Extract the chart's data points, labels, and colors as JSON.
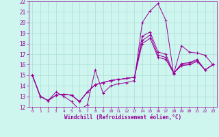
{
  "xlabel": "Windchill (Refroidissement éolien,°C)",
  "background_color": "#cef5ee",
  "grid_color": "#aaded8",
  "line_color": "#990099",
  "xlim": [
    -0.5,
    23.5
  ],
  "ylim": [
    12,
    22
  ],
  "yticks": [
    12,
    13,
    14,
    15,
    16,
    17,
    18,
    19,
    20,
    21,
    22
  ],
  "xticks": [
    0,
    1,
    2,
    3,
    4,
    5,
    6,
    7,
    8,
    9,
    10,
    11,
    12,
    13,
    14,
    15,
    16,
    17,
    18,
    19,
    20,
    21,
    22,
    23
  ],
  "line1_x": [
    0,
    1,
    2,
    3,
    4,
    5,
    6,
    7,
    8,
    9,
    10,
    11,
    12,
    13,
    14,
    15,
    16,
    17,
    18,
    19,
    20,
    21,
    22,
    23
  ],
  "line1_y": [
    15,
    13,
    12.6,
    13.4,
    13.0,
    12.5,
    11.7,
    12.2,
    15.5,
    13.3,
    14.0,
    14.2,
    14.3,
    14.5,
    20.0,
    21.1,
    21.8,
    20.2,
    15.1,
    17.8,
    17.2,
    17.1,
    16.9,
    16.0
  ],
  "line2_x": [
    0,
    1,
    2,
    3,
    4,
    5,
    6,
    7,
    8,
    9,
    10,
    11,
    12,
    13,
    14,
    15,
    16,
    17,
    18,
    19,
    20,
    21,
    22,
    23
  ],
  "line2_y": [
    15,
    13,
    12.6,
    13.1,
    13.2,
    13.1,
    12.5,
    13.4,
    14.1,
    14.3,
    14.5,
    14.6,
    14.7,
    14.8,
    18.7,
    19.1,
    17.2,
    17.0,
    15.2,
    16.1,
    16.2,
    16.5,
    15.5,
    16.0
  ],
  "line3_x": [
    0,
    1,
    2,
    3,
    4,
    5,
    6,
    7,
    8,
    9,
    10,
    11,
    12,
    13,
    14,
    15,
    16,
    17,
    18,
    19,
    20,
    21,
    22,
    23
  ],
  "line3_y": [
    15,
    13,
    12.6,
    13.1,
    13.2,
    13.1,
    12.5,
    13.4,
    14.1,
    14.3,
    14.5,
    14.6,
    14.7,
    14.8,
    18.3,
    18.8,
    16.9,
    16.7,
    15.2,
    16.0,
    16.1,
    16.4,
    15.5,
    16.0
  ],
  "line4_x": [
    0,
    1,
    2,
    3,
    4,
    5,
    6,
    7,
    8,
    9,
    10,
    11,
    12,
    13,
    14,
    15,
    16,
    17,
    18,
    19,
    20,
    21,
    22,
    23
  ],
  "line4_y": [
    15,
    13,
    12.6,
    13.1,
    13.2,
    13.1,
    12.5,
    13.4,
    14.1,
    14.3,
    14.5,
    14.6,
    14.7,
    14.8,
    18.0,
    18.5,
    16.7,
    16.5,
    15.2,
    15.9,
    16.0,
    16.3,
    15.5,
    16.0
  ]
}
